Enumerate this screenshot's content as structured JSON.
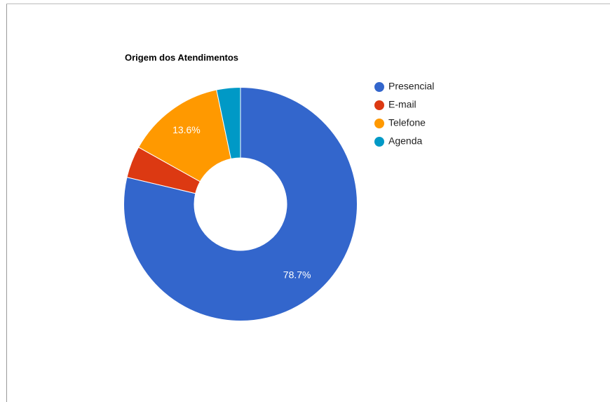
{
  "chart_data": {
    "type": "pie",
    "title": "Origem dos Atendimentos",
    "categories": [
      "Presencial",
      "E-mail",
      "Telefone",
      "Agenda"
    ],
    "values": [
      78.7,
      4.4,
      13.6,
      3.3
    ],
    "value_labels": [
      "78.7%",
      null,
      "13.6%",
      null
    ],
    "colors": [
      "#3366cc",
      "#dc3912",
      "#ff9900",
      "#0099c6"
    ],
    "donut": true,
    "legend": "right"
  }
}
